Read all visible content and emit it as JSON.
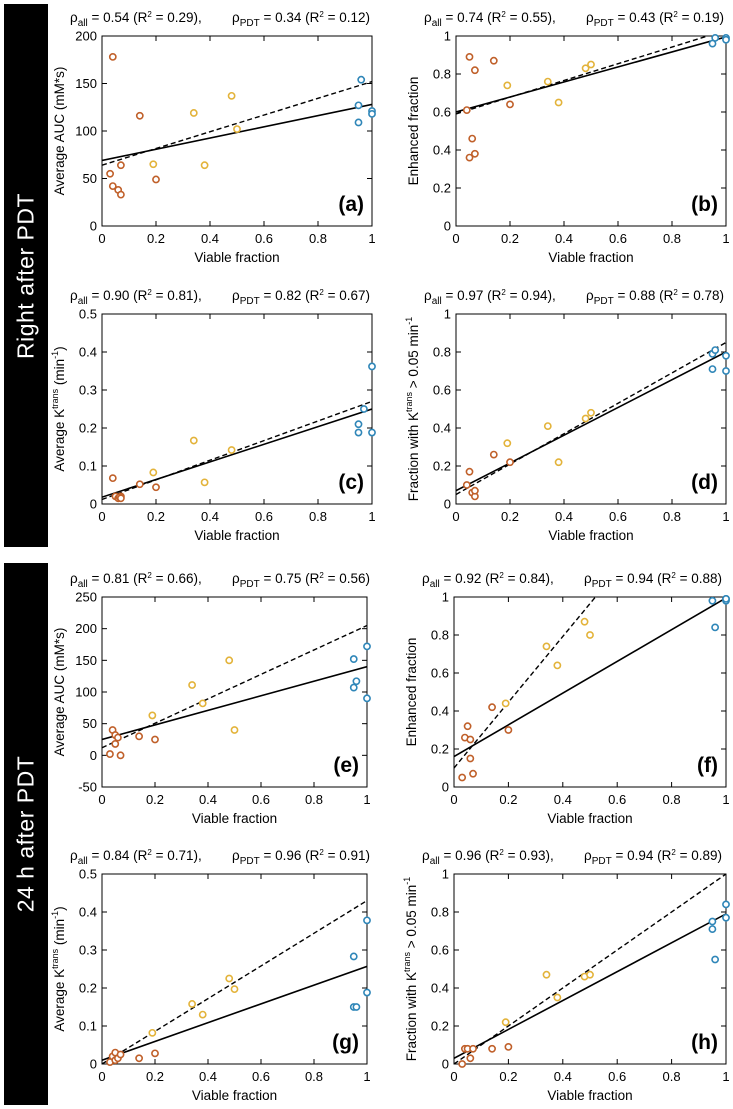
{
  "side_labels": {
    "top": "Right after PDT",
    "bottom": "24 h after PDT"
  },
  "colors": {
    "orange_dark": "#c0602a",
    "yellow": "#e3b33a",
    "blue": "#2f86b8",
    "line": "#000000"
  },
  "chart_data": [
    {
      "id": "a",
      "type": "scatter",
      "label": "(a)",
      "stats": {
        "all_rho": "0.54",
        "all_r2": "0.29",
        "pdt_rho": "0.34",
        "pdt_r2": "0.12"
      },
      "xlabel": "Viable fraction",
      "ylabel": "Average AUC (mM*s)",
      "xlim": [
        0,
        1
      ],
      "ylim": [
        0,
        200
      ],
      "xticks": [
        "0",
        "0.2",
        "0.4",
        "0.6",
        "0.8",
        "1"
      ],
      "yticks": [
        "0",
        "50",
        "100",
        "150",
        "200"
      ],
      "series": [
        {
          "name": "low",
          "color": "#c0602a",
          "points": [
            [
              0.04,
              178
            ],
            [
              0.14,
              116
            ],
            [
              0.03,
              55
            ],
            [
              0.04,
              42
            ],
            [
              0.06,
              38
            ],
            [
              0.07,
              33
            ],
            [
              0.07,
              64
            ],
            [
              0.2,
              49
            ]
          ]
        },
        {
          "name": "mid",
          "color": "#e3b33a",
          "points": [
            [
              0.19,
              65
            ],
            [
              0.34,
              119
            ],
            [
              0.38,
              64
            ],
            [
              0.48,
              137
            ],
            [
              0.5,
              102
            ]
          ]
        },
        {
          "name": "high",
          "color": "#2f86b8",
          "points": [
            [
              0.95,
              127
            ],
            [
              0.95,
              109
            ],
            [
              0.96,
              154
            ],
            [
              1.0,
              121
            ],
            [
              1.0,
              118
            ]
          ]
        }
      ],
      "fit_solid": [
        [
          0,
          69
        ],
        [
          1,
          128
        ]
      ],
      "fit_dashed": [
        [
          0,
          64
        ],
        [
          1,
          152
        ]
      ]
    },
    {
      "id": "b",
      "type": "scatter",
      "label": "(b)",
      "stats": {
        "all_rho": "0.74",
        "all_r2": "0.55",
        "pdt_rho": "0.43",
        "pdt_r2": "0.19"
      },
      "xlabel": "Viable fraction",
      "ylabel": "Enhanced fraction",
      "xlim": [
        0,
        1
      ],
      "ylim": [
        0,
        1
      ],
      "xticks": [
        "0",
        "0.2",
        "0.4",
        "0.6",
        "0.8",
        "1"
      ],
      "yticks": [
        "0",
        "0.2",
        "0.4",
        "0.6",
        "0.8",
        "1"
      ],
      "series": [
        {
          "name": "low",
          "color": "#c0602a",
          "points": [
            [
              0.04,
              0.61
            ],
            [
              0.05,
              0.89
            ],
            [
              0.07,
              0.82
            ],
            [
              0.14,
              0.87
            ],
            [
              0.05,
              0.36
            ],
            [
              0.06,
              0.46
            ],
            [
              0.07,
              0.38
            ],
            [
              0.2,
              0.64
            ]
          ]
        },
        {
          "name": "mid",
          "color": "#e3b33a",
          "points": [
            [
              0.19,
              0.74
            ],
            [
              0.34,
              0.76
            ],
            [
              0.38,
              0.65
            ],
            [
              0.48,
              0.83
            ],
            [
              0.5,
              0.85
            ]
          ]
        },
        {
          "name": "high",
          "color": "#2f86b8",
          "points": [
            [
              0.95,
              0.96
            ],
            [
              0.96,
              0.99
            ],
            [
              1.0,
              0.99
            ],
            [
              1.0,
              0.98
            ]
          ]
        }
      ],
      "fit_solid": [
        [
          0,
          0.6
        ],
        [
          1,
          0.995
        ]
      ],
      "fit_dashed": [
        [
          0,
          0.59
        ],
        [
          1,
          1.03
        ]
      ]
    },
    {
      "id": "c",
      "type": "scatter",
      "label": "(c)",
      "stats": {
        "all_rho": "0.90",
        "all_r2": "0.81",
        "pdt_rho": "0.82",
        "pdt_r2": "0.67"
      },
      "xlabel": "Viable fraction",
      "ylabel": "Average K",
      "ylabel_sup": "trans",
      "ylabel_tail": " (min",
      "ylabel_tail_sup": "-1",
      "ylabel_close": ")",
      "xlim": [
        0,
        1
      ],
      "ylim": [
        0,
        0.5
      ],
      "xticks": [
        "0",
        "0.2",
        "0.4",
        "0.6",
        "0.8",
        "1"
      ],
      "yticks": [
        "0",
        "0.1",
        "0.2",
        "0.3",
        "0.4",
        "0.5"
      ],
      "series": [
        {
          "name": "low",
          "color": "#c0602a",
          "points": [
            [
              0.04,
              0.068
            ],
            [
              0.05,
              0.02
            ],
            [
              0.06,
              0.015
            ],
            [
              0.07,
              0.02
            ],
            [
              0.14,
              0.052
            ],
            [
              0.2,
              0.044
            ],
            [
              0.065,
              0.018
            ],
            [
              0.07,
              0.015
            ]
          ]
        },
        {
          "name": "mid",
          "color": "#e3b33a",
          "points": [
            [
              0.19,
              0.083
            ],
            [
              0.34,
              0.167
            ],
            [
              0.38,
              0.057
            ],
            [
              0.48,
              0.142
            ]
          ]
        },
        {
          "name": "high",
          "color": "#2f86b8",
          "points": [
            [
              0.95,
              0.21
            ],
            [
              0.95,
              0.188
            ],
            [
              0.97,
              0.25
            ],
            [
              1.0,
              0.362
            ],
            [
              1.0,
              0.188
            ]
          ]
        }
      ],
      "fit_solid": [
        [
          0,
          0.018
        ],
        [
          1,
          0.25
        ]
      ],
      "fit_dashed": [
        [
          0,
          0.012
        ],
        [
          1,
          0.27
        ]
      ]
    },
    {
      "id": "d",
      "type": "scatter",
      "label": "(d)",
      "stats": {
        "all_rho": "0.97",
        "all_r2": "0.94",
        "pdt_rho": "0.88",
        "pdt_r2": "0.78"
      },
      "xlabel": "Viable fraction",
      "ylabel": "Fraction with K",
      "ylabel_sup": "trans",
      "ylabel_tail": " > 0.05 min",
      "ylabel_tail_sup": "-1",
      "ylabel_close": "",
      "xlim": [
        0,
        1
      ],
      "ylim": [
        0,
        1
      ],
      "xticks": [
        "0",
        "0.2",
        "0.4",
        "0.6",
        "0.8",
        "1"
      ],
      "yticks": [
        "0",
        "0.2",
        "0.4",
        "0.6",
        "0.8",
        "1"
      ],
      "series": [
        {
          "name": "low",
          "color": "#c0602a",
          "points": [
            [
              0.04,
              0.1
            ],
            [
              0.05,
              0.17
            ],
            [
              0.06,
              0.06
            ],
            [
              0.07,
              0.04
            ],
            [
              0.07,
              0.07
            ],
            [
              0.14,
              0.26
            ],
            [
              0.2,
              0.22
            ]
          ]
        },
        {
          "name": "mid",
          "color": "#e3b33a",
          "points": [
            [
              0.19,
              0.32
            ],
            [
              0.34,
              0.41
            ],
            [
              0.38,
              0.22
            ],
            [
              0.48,
              0.45
            ],
            [
              0.5,
              0.48
            ]
          ]
        },
        {
          "name": "high",
          "color": "#2f86b8",
          "points": [
            [
              0.95,
              0.79
            ],
            [
              0.95,
              0.71
            ],
            [
              0.96,
              0.81
            ],
            [
              1.0,
              0.78
            ],
            [
              1.0,
              0.7
            ]
          ]
        }
      ],
      "fit_solid": [
        [
          0,
          0.07
        ],
        [
          1,
          0.8
        ]
      ],
      "fit_dashed": [
        [
          0,
          0.05
        ],
        [
          1,
          0.85
        ]
      ]
    },
    {
      "id": "e",
      "type": "scatter",
      "label": "(e)",
      "stats": {
        "all_rho": "0.81",
        "all_r2": "0.66",
        "pdt_rho": "0.75",
        "pdt_r2": "0.56"
      },
      "xlabel": "Viable fraction",
      "ylabel": "Average AUC (mM*s)",
      "xlim": [
        0,
        1
      ],
      "ylim": [
        -50,
        250
      ],
      "xticks": [
        "0",
        "0.2",
        "0.4",
        "0.6",
        "0.8",
        "1"
      ],
      "yticks": [
        "-50",
        "0",
        "50",
        "100",
        "150",
        "200",
        "250"
      ],
      "series": [
        {
          "name": "low",
          "color": "#c0602a",
          "points": [
            [
              0.03,
              2
            ],
            [
              0.04,
              40
            ],
            [
              0.05,
              18
            ],
            [
              0.05,
              32
            ],
            [
              0.06,
              28
            ],
            [
              0.07,
              0
            ],
            [
              0.14,
              30
            ],
            [
              0.2,
              25
            ]
          ]
        },
        {
          "name": "mid",
          "color": "#e3b33a",
          "points": [
            [
              0.19,
              63
            ],
            [
              0.34,
              111
            ],
            [
              0.38,
              82
            ],
            [
              0.48,
              150
            ],
            [
              0.5,
              40
            ]
          ]
        },
        {
          "name": "high",
          "color": "#2f86b8",
          "points": [
            [
              0.95,
              107
            ],
            [
              0.95,
              152
            ],
            [
              0.96,
              117
            ],
            [
              1.0,
              172
            ],
            [
              1.0,
              90
            ]
          ]
        }
      ],
      "fit_solid": [
        [
          0,
          25
        ],
        [
          1,
          140
        ]
      ],
      "fit_dashed": [
        [
          0,
          12
        ],
        [
          1,
          205
        ]
      ]
    },
    {
      "id": "f",
      "type": "scatter",
      "label": "(f)",
      "stats": {
        "all_rho": "0.92",
        "all_r2": "0.84",
        "pdt_rho": "0.94",
        "pdt_r2": "0.88"
      },
      "xlabel": "Viable fraction",
      "ylabel": "Enhanced fraction",
      "xlim": [
        0,
        1
      ],
      "ylim": [
        0,
        1
      ],
      "xticks": [
        "0",
        "0.2",
        "0.4",
        "0.6",
        "0.8",
        "1"
      ],
      "yticks": [
        "0",
        "0.2",
        "0.4",
        "0.6",
        "0.8",
        "1"
      ],
      "series": [
        {
          "name": "low",
          "color": "#c0602a",
          "points": [
            [
              0.03,
              0.05
            ],
            [
              0.04,
              0.26
            ],
            [
              0.05,
              0.32
            ],
            [
              0.06,
              0.15
            ],
            [
              0.06,
              0.25
            ],
            [
              0.07,
              0.07
            ],
            [
              0.14,
              0.42
            ],
            [
              0.2,
              0.3
            ]
          ]
        },
        {
          "name": "mid",
          "color": "#e3b33a",
          "points": [
            [
              0.19,
              0.44
            ],
            [
              0.34,
              0.74
            ],
            [
              0.38,
              0.64
            ],
            [
              0.48,
              0.87
            ],
            [
              0.5,
              0.8
            ]
          ]
        },
        {
          "name": "high",
          "color": "#2f86b8",
          "points": [
            [
              0.95,
              0.98
            ],
            [
              0.96,
              0.84
            ],
            [
              1.0,
              0.99
            ],
            [
              1.0,
              0.98
            ],
            [
              1.0,
              0.99
            ]
          ]
        }
      ],
      "fit_solid": [
        [
          0,
          0.16
        ],
        [
          1,
          0.995
        ]
      ],
      "fit_dashed": [
        [
          0,
          0.1
        ],
        [
          0.52,
          1.0
        ]
      ]
    },
    {
      "id": "g",
      "type": "scatter",
      "label": "(g)",
      "stats": {
        "all_rho": "0.84",
        "all_r2": "0.71",
        "pdt_rho": "0.96",
        "pdt_r2": "0.91"
      },
      "xlabel": "Viable fraction",
      "ylabel": "Average K",
      "ylabel_sup": "trans",
      "ylabel_tail": " (min",
      "ylabel_tail_sup": "-1",
      "ylabel_close": ")",
      "xlim": [
        0,
        1
      ],
      "ylim": [
        0,
        0.5
      ],
      "xticks": [
        "0",
        "0.2",
        "0.4",
        "0.6",
        "0.8",
        "1"
      ],
      "yticks": [
        "0",
        "0.1",
        "0.2",
        "0.3",
        "0.4",
        "0.5"
      ],
      "series": [
        {
          "name": "low",
          "color": "#c0602a",
          "points": [
            [
              0.03,
              0.005
            ],
            [
              0.04,
              0.02
            ],
            [
              0.05,
              0.03
            ],
            [
              0.05,
              0.01
            ],
            [
              0.06,
              0.015
            ],
            [
              0.07,
              0.025
            ],
            [
              0.14,
              0.015
            ],
            [
              0.2,
              0.028
            ]
          ]
        },
        {
          "name": "mid",
          "color": "#e3b33a",
          "points": [
            [
              0.19,
              0.082
            ],
            [
              0.34,
              0.158
            ],
            [
              0.38,
              0.13
            ],
            [
              0.48,
              0.225
            ],
            [
              0.5,
              0.197
            ]
          ]
        },
        {
          "name": "high",
          "color": "#2f86b8",
          "points": [
            [
              0.95,
              0.283
            ],
            [
              0.95,
              0.15
            ],
            [
              0.96,
              0.15
            ],
            [
              1.0,
              0.378
            ],
            [
              1.0,
              0.188
            ]
          ]
        }
      ],
      "fit_solid": [
        [
          0,
          0.01
        ],
        [
          1,
          0.257
        ]
      ],
      "fit_dashed": [
        [
          0,
          0.0
        ],
        [
          1,
          0.43
        ]
      ]
    },
    {
      "id": "h",
      "type": "scatter",
      "label": "(h)",
      "stats": {
        "all_rho": "0.96",
        "all_r2": "0.93",
        "pdt_rho": "0.94",
        "pdt_r2": "0.89"
      },
      "xlabel": "Viable fraction",
      "ylabel": "Fraction with K",
      "ylabel_sup": "trans",
      "ylabel_tail": " > 0.05 min",
      "ylabel_tail_sup": "-1",
      "ylabel_close": "",
      "xlim": [
        0,
        1
      ],
      "ylim": [
        0,
        1
      ],
      "xticks": [
        "0",
        "0.2",
        "0.4",
        "0.6",
        "0.8",
        "1"
      ],
      "yticks": [
        "0",
        "0.2",
        "0.4",
        "0.6",
        "0.8",
        "1"
      ],
      "series": [
        {
          "name": "low",
          "color": "#c0602a",
          "points": [
            [
              0.03,
              0.0
            ],
            [
              0.04,
              0.08
            ],
            [
              0.05,
              0.08
            ],
            [
              0.06,
              0.03
            ],
            [
              0.07,
              0.08
            ],
            [
              0.14,
              0.08
            ],
            [
              0.2,
              0.09
            ]
          ]
        },
        {
          "name": "mid",
          "color": "#e3b33a",
          "points": [
            [
              0.19,
              0.22
            ],
            [
              0.34,
              0.47
            ],
            [
              0.38,
              0.35
            ],
            [
              0.48,
              0.46
            ],
            [
              0.5,
              0.47
            ]
          ]
        },
        {
          "name": "high",
          "color": "#2f86b8",
          "points": [
            [
              0.95,
              0.71
            ],
            [
              0.95,
              0.75
            ],
            [
              0.96,
              0.55
            ],
            [
              1.0,
              0.84
            ],
            [
              1.0,
              0.77
            ]
          ]
        }
      ],
      "fit_solid": [
        [
          0,
          0.03
        ],
        [
          1,
          0.79
        ]
      ],
      "fit_dashed": [
        [
          0,
          0.0
        ],
        [
          1,
          1.0
        ]
      ]
    }
  ]
}
